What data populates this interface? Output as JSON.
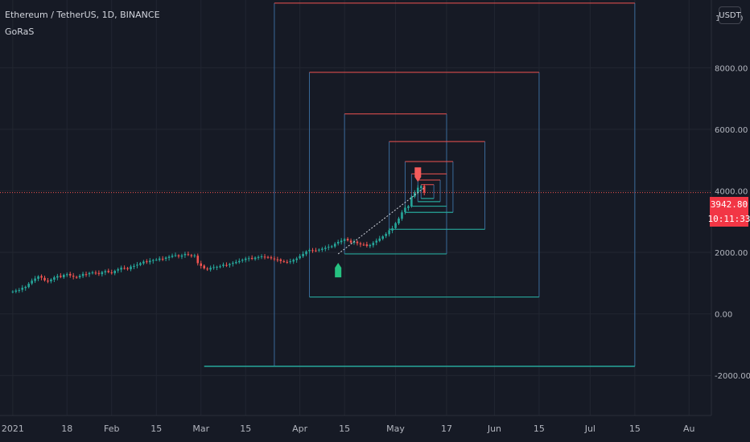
{
  "header": {
    "title": "Ethereum / TetherUS, 1D, BINANCE",
    "indicator": "GoRaS"
  },
  "axis": {
    "currency": "USDT",
    "top_price_label": "1",
    "top_price_label_right": "0"
  },
  "last_price": {
    "value": "3942.80",
    "countdown": "10:11:33",
    "color": "#f23645"
  },
  "colors": {
    "background": "#161a25",
    "grid": "#222631",
    "up": "#26a69a",
    "down": "#ef5350",
    "box_top": "#ef5350",
    "box_side": "#3a6a9a",
    "box_bottom": "#26a69a",
    "signal_buy": "#26c281",
    "signal_sell": "#f45b5b",
    "text": "#b2b5be"
  },
  "chart_data": {
    "type": "candlestick",
    "symbol": "Ethereum / TetherUS",
    "interval": "1D",
    "exchange": "BINANCE",
    "y_ticks": [
      {
        "value": 8000,
        "label": "8000.00"
      },
      {
        "value": 6000,
        "label": "6000.00"
      },
      {
        "value": 4000,
        "label": "4000.00"
      },
      {
        "value": 2000,
        "label": "2000.00"
      },
      {
        "value": 0,
        "label": "0.00"
      },
      {
        "value": -2000,
        "label": "-2000.00"
      }
    ],
    "ylim": [
      -3300,
      10200
    ],
    "x_ticks": [
      {
        "day": 0,
        "label": "2021"
      },
      {
        "day": 17,
        "label": "18"
      },
      {
        "day": 31,
        "label": "Feb"
      },
      {
        "day": 45,
        "label": "15"
      },
      {
        "day": 59,
        "label": "Mar"
      },
      {
        "day": 73,
        "label": "15"
      },
      {
        "day": 90,
        "label": "Apr"
      },
      {
        "day": 104,
        "label": "15"
      },
      {
        "day": 120,
        "label": "May"
      },
      {
        "day": 136,
        "label": "17"
      },
      {
        "day": 151,
        "label": "Jun"
      },
      {
        "day": 165,
        "label": "15"
      },
      {
        "day": 181,
        "label": "Jul"
      },
      {
        "day": 195,
        "label": "15"
      },
      {
        "day": 212,
        "label": "Au"
      }
    ],
    "xlim": [
      -4,
      219
    ],
    "closes": [
      730,
      760,
      775,
      850,
      880,
      980,
      1080,
      1150,
      1220,
      1180,
      1090,
      1050,
      1120,
      1190,
      1230,
      1200,
      1270,
      1290,
      1250,
      1210,
      1180,
      1240,
      1300,
      1280,
      1330,
      1350,
      1320,
      1300,
      1360,
      1390,
      1360,
      1330,
      1400,
      1450,
      1500,
      1480,
      1460,
      1540,
      1560,
      1600,
      1650,
      1700,
      1690,
      1730,
      1750,
      1760,
      1800,
      1780,
      1830,
      1860,
      1890,
      1910,
      1870,
      1900,
      1950,
      1920,
      1880,
      1900,
      1650,
      1560,
      1480,
      1450,
      1500,
      1520,
      1530,
      1550,
      1600,
      1590,
      1620,
      1660,
      1690,
      1720,
      1760,
      1800,
      1810,
      1790,
      1830,
      1850,
      1870,
      1860,
      1830,
      1810,
      1780,
      1760,
      1720,
      1700,
      1680,
      1710,
      1760,
      1800,
      1880,
      1950,
      2030,
      2080,
      2070,
      2050,
      2090,
      2120,
      2150,
      2180,
      2200,
      2280,
      2340,
      2380,
      2430,
      2390,
      2320,
      2340,
      2300,
      2260,
      2250,
      2210,
      2240,
      2310,
      2380,
      2450,
      2520,
      2600,
      2720,
      2780,
      2950,
      3100,
      3300,
      3450,
      3500,
      3800,
      3950,
      4100,
      4150,
      3942.8
    ],
    "opens_offset": 30,
    "boxes": [
      {
        "start": 104,
        "end": 136,
        "top": 6500,
        "bottom": 1950
      },
      {
        "start": 82,
        "end": 195,
        "top": 10100,
        "bottom": -1700
      },
      {
        "start": 93,
        "end": 165,
        "top": 7850,
        "bottom": 550
      },
      {
        "start": 118,
        "end": 148,
        "top": 5600,
        "bottom": 2750
      },
      {
        "start": 123,
        "end": 138,
        "top": 4950,
        "bottom": 3300
      },
      {
        "start": 125,
        "end": 136,
        "top": 4550,
        "bottom": 3500
      },
      {
        "start": 127,
        "end": 134,
        "top": 4350,
        "bottom": 3650
      },
      {
        "start": 128,
        "end": 132,
        "top": 4200,
        "bottom": 3750
      }
    ],
    "bottom_line": {
      "start": 60,
      "end": 195,
      "value": -1700
    },
    "signals": [
      {
        "type": "buy",
        "day": 102,
        "value": 1500
      },
      {
        "type": "sell",
        "day": 127,
        "value": 4450
      }
    ],
    "trend_line": {
      "from_day": 102,
      "from_value": 1950,
      "to_day": 129,
      "to_value": 4100
    }
  }
}
